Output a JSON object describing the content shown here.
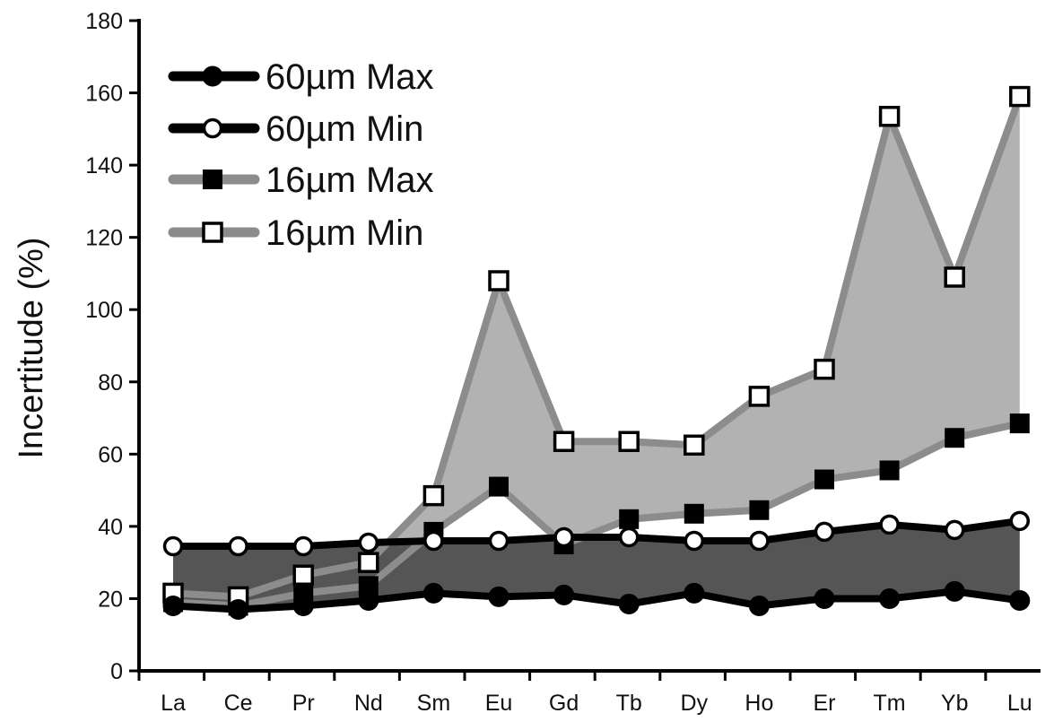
{
  "chart_data": {
    "type": "line",
    "title": "",
    "xlabel": "",
    "ylabel": "Incertitude (%)",
    "ylim": [
      0,
      180
    ],
    "yticks": [
      0,
      20,
      40,
      60,
      80,
      100,
      120,
      140,
      160,
      180
    ],
    "categories": [
      "La",
      "Ce",
      "Pr",
      "Nd",
      "Sm",
      "Eu",
      "Gd",
      "Tb",
      "Dy",
      "Ho",
      "Er",
      "Tm",
      "Yb",
      "Lu"
    ],
    "grid": false,
    "legend_position": "top-left",
    "fill_between_series": true,
    "series": [
      {
        "name": "60µm Max",
        "marker": "filled-circle",
        "line_color": "#000000",
        "values": [
          18,
          17,
          18,
          19.5,
          21.5,
          20.5,
          21,
          18.5,
          21.5,
          18,
          20,
          20,
          22,
          19.5
        ]
      },
      {
        "name": "60µm Min",
        "marker": "open-circle",
        "line_color": "#000000",
        "values": [
          34.5,
          34.5,
          34.5,
          35.5,
          36,
          36,
          37,
          37,
          36,
          36,
          38.5,
          40.5,
          39,
          41.5
        ]
      },
      {
        "name": "16µm Max",
        "marker": "filled-square",
        "line_color": "#8c8c8c",
        "values": [
          19,
          18,
          21.5,
          23.5,
          38.5,
          51,
          35,
          42,
          43.5,
          44.5,
          53,
          55.5,
          64.5,
          68.5
        ]
      },
      {
        "name": "16µm Min",
        "marker": "open-square",
        "line_color": "#8c8c8c",
        "values": [
          21.5,
          20.5,
          26.5,
          30,
          48.5,
          108,
          63.5,
          63.5,
          62.5,
          76,
          83.5,
          153.5,
          109,
          159
        ]
      }
    ],
    "colors": {
      "band_60um": "#555555",
      "band_16um": "#b2b2b2",
      "line_60um": "#000000",
      "line_16um": "#8c8c8c"
    }
  }
}
